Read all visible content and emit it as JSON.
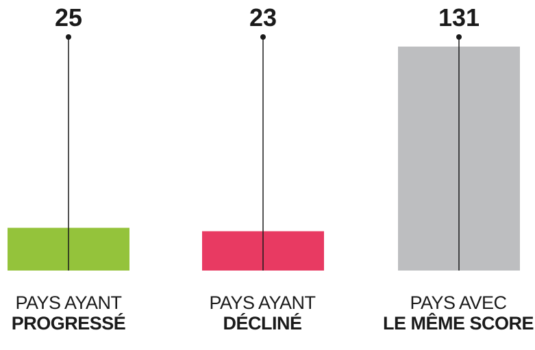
{
  "chart_data": {
    "type": "bar",
    "categories": [
      {
        "line1": "PAYS AYANT",
        "line2": "PROGRESSÉ"
      },
      {
        "line1": "PAYS AYANT",
        "line2": "DÉCLINÉ"
      },
      {
        "line1": "PAYS AVEC",
        "line2": "LE MÊME SCORE"
      }
    ],
    "values": [
      25,
      23,
      131
    ],
    "value_labels": [
      "25",
      "23",
      "131"
    ],
    "colors": [
      "#94c33b",
      "#e83a62",
      "#bdbec0"
    ],
    "grid": false,
    "legend": "none"
  }
}
